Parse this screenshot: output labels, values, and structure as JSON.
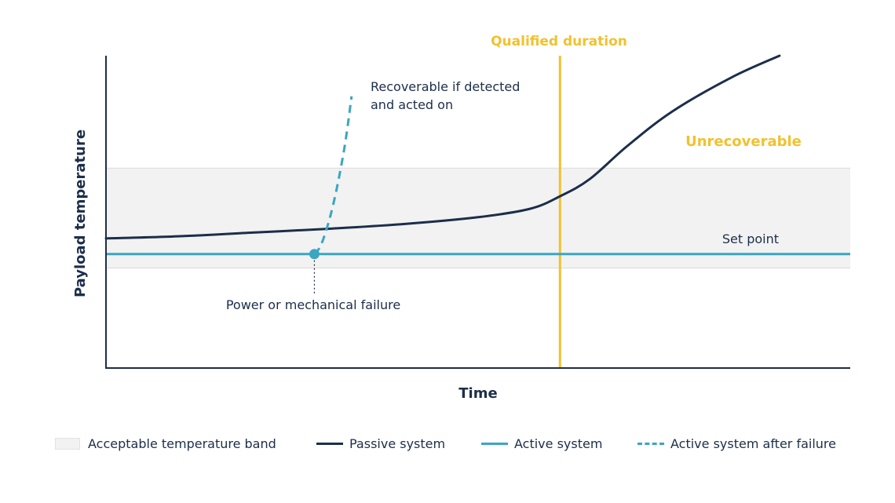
{
  "chart_data": {
    "type": "line",
    "title": "",
    "xlabel": "Time",
    "ylabel": "Payload temperature",
    "xlim": [
      0,
      100
    ],
    "ylim": [
      0,
      100
    ],
    "x_ticks": [],
    "y_ticks": [],
    "grid": false,
    "legend_position": "bottom",
    "acceptable_band": {
      "name": "Acceptable temperature band",
      "y": [
        32,
        64
      ],
      "color": "#f2f2f2"
    },
    "set_point": {
      "label": "Set point",
      "y": 36.5
    },
    "qualified_duration": {
      "label": "Qualified duration",
      "x": 61
    },
    "failure_point": {
      "x": 28,
      "y": 36.5
    },
    "series": [
      {
        "name": "Passive system",
        "color": "#1c2e4a",
        "style": "solid",
        "points": [
          [
            0,
            41.5
          ],
          [
            10,
            42.2
          ],
          [
            20,
            43.4
          ],
          [
            30,
            44.6
          ],
          [
            40,
            46.1
          ],
          [
            50,
            48.3
          ],
          [
            57,
            51
          ],
          [
            61,
            55
          ],
          [
            65,
            60.5
          ],
          [
            70,
            71
          ],
          [
            76,
            82
          ],
          [
            84,
            93
          ],
          [
            90.5,
            100
          ]
        ]
      },
      {
        "name": "Active system",
        "color": "#3aa6c0",
        "style": "solid",
        "points": [
          [
            0,
            36.5
          ],
          [
            100,
            36.5
          ]
        ]
      },
      {
        "name": "Active system after failure",
        "color": "#3aa6c0",
        "style": "dashed",
        "points": [
          [
            28,
            36.5
          ],
          [
            29,
            40
          ],
          [
            30.5,
            52
          ],
          [
            32,
            70
          ],
          [
            33,
            87
          ]
        ]
      }
    ],
    "annotations": {
      "recoverable": [
        "Recoverable if detected",
        "and acted on"
      ],
      "unrecoverable": "Unrecoverable",
      "failure": "Power or mechanical failure"
    }
  }
}
